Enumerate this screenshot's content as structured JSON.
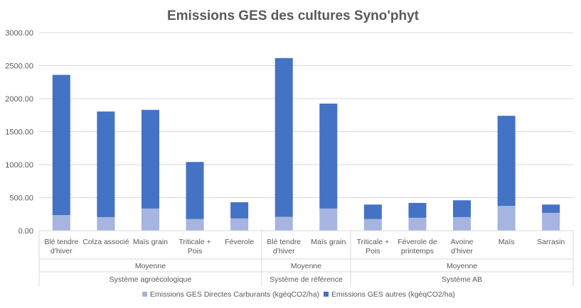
{
  "chart_data": {
    "type": "bar",
    "stacked": true,
    "title": "Emissions GES des cultures Syno'phyt",
    "ylim": [
      0,
      3000
    ],
    "yticks": [
      "0.00",
      "500.00",
      "1000.00",
      "1500.00",
      "2000.00",
      "2500.00",
      "3000.00"
    ],
    "grid": true,
    "legend_position": "bottom",
    "categories": [
      [
        "Blé tendre",
        "d'hiver"
      ],
      [
        "Colza associé"
      ],
      [
        "Maïs grain"
      ],
      [
        "Triticale +",
        "Pois"
      ],
      [
        "Féverole"
      ],
      [
        "Blé tendre",
        "d'hiver"
      ],
      [
        "Maïs grain"
      ],
      [
        "Triticale +",
        "Pois"
      ],
      [
        "Féverole de",
        "printemps"
      ],
      [
        "Avoine",
        "d'hiver"
      ],
      [
        "Maïs"
      ],
      [
        "Sarrasin"
      ]
    ],
    "groups": [
      {
        "label": "Moyenne",
        "system": "Système agroécologique",
        "start": 0,
        "count": 5
      },
      {
        "label": "Moyenne",
        "system": "Système de référence",
        "start": 5,
        "count": 2
      },
      {
        "label": "Moyenne",
        "system": "Système AB",
        "start": 7,
        "count": 5
      }
    ],
    "series": [
      {
        "name": "Emissions GES Directes Carburants (kgéqCO2/ha)",
        "color": "#A5B5E0",
        "values": [
          235,
          205,
          335,
          175,
          185,
          210,
          335,
          175,
          195,
          205,
          375,
          270
        ]
      },
      {
        "name": "Emissions GES autres  (kgéqCO2/ha)",
        "color": "#4472C4",
        "values": [
          2125,
          1600,
          1495,
          865,
          245,
          2405,
          1590,
          220,
          225,
          255,
          1365,
          125
        ]
      }
    ]
  }
}
